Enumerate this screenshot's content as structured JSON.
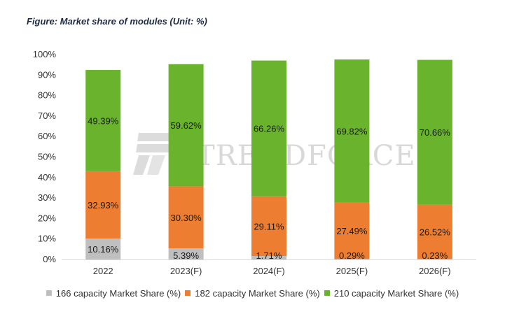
{
  "chart_data": {
    "type": "bar",
    "stacked": true,
    "title": "Figure: Market share of modules (Unit: %)",
    "categories": [
      "2022",
      "2023(F)",
      "2024(F)",
      "2025(F)",
      "2026(F)"
    ],
    "series": [
      {
        "name": "166 capacity Market Share (%)",
        "color": "#bfbfbf",
        "values": [
          10.16,
          5.39,
          1.71,
          0.29,
          0.23
        ],
        "labels": [
          "10.16%",
          "5.39%",
          "1.71%",
          "0.29%",
          "0.23%"
        ]
      },
      {
        "name": "182 capacity Market Share (%)",
        "color": "#ed7d31",
        "values": [
          32.93,
          30.3,
          29.11,
          27.49,
          26.52
        ],
        "labels": [
          "32.93%",
          "30.30%",
          "29.11%",
          "27.49%",
          "26.52%"
        ]
      },
      {
        "name": "210 capacity Market Share (%)",
        "color": "#6ab42d",
        "values": [
          49.39,
          59.62,
          66.26,
          69.82,
          70.66
        ],
        "labels": [
          "49.39%",
          "59.62%",
          "66.26%",
          "69.82%",
          "70.66%"
        ]
      }
    ],
    "ylim": [
      0,
      100
    ],
    "yticks": [
      "0%",
      "10%",
      "20%",
      "30%",
      "40%",
      "50%",
      "60%",
      "70%",
      "80%",
      "90%",
      "100%"
    ],
    "grid": false,
    "legend_position": "bottom"
  },
  "watermark": {
    "text": "TRENDFORCE"
  }
}
